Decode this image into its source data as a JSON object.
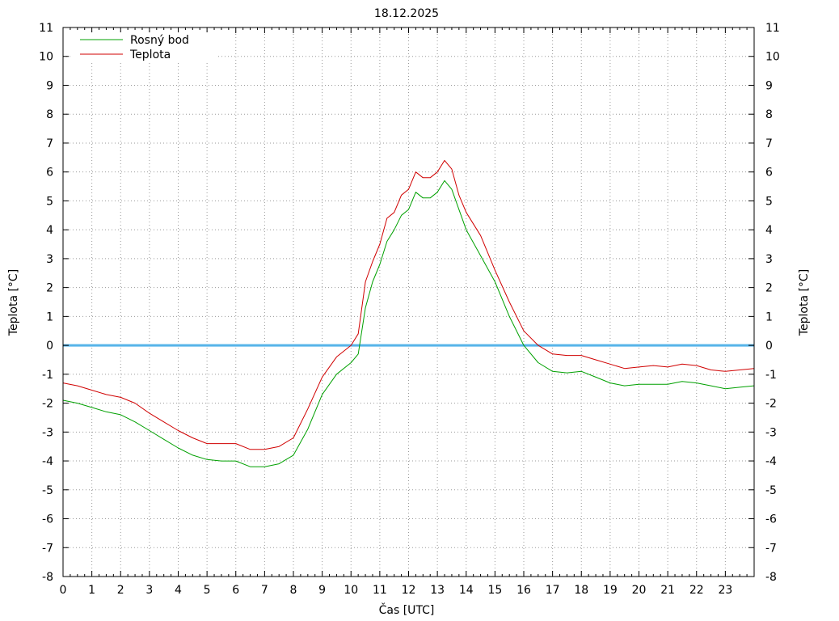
{
  "chart_data": {
    "type": "line",
    "title": "18.12.2025",
    "xlabel": "Čas [UTC]",
    "ylabel": "Teplota [°C]",
    "ylabel_right": "Teplota [°C]",
    "xlim": [
      0,
      24
    ],
    "ylim": [
      -8,
      11
    ],
    "x_ticks": [
      0,
      1,
      2,
      3,
      4,
      5,
      6,
      7,
      8,
      9,
      10,
      11,
      12,
      13,
      14,
      15,
      16,
      17,
      18,
      19,
      20,
      21,
      22,
      23
    ],
    "y_ticks": [
      -8,
      -7,
      -6,
      -5,
      -4,
      -3,
      -2,
      -1,
      0,
      1,
      2,
      3,
      4,
      5,
      6,
      7,
      8,
      9,
      10,
      11
    ],
    "grid": true,
    "legend_position": "top-left",
    "reference_line": {
      "y": 0,
      "color": "#56b4e9"
    },
    "series": [
      {
        "name": "Rosný bod",
        "color": "#00a000",
        "x": [
          0,
          0.5,
          1,
          1.5,
          2,
          2.5,
          3,
          3.5,
          4,
          4.5,
          5,
          5.5,
          6,
          6.5,
          7,
          7.5,
          8,
          8.5,
          9,
          9.5,
          10,
          10.25,
          10.5,
          10.75,
          11,
          11.25,
          11.5,
          11.75,
          12,
          12.25,
          12.5,
          12.75,
          13,
          13.25,
          13.5,
          13.75,
          14,
          14.5,
          15,
          15.5,
          16,
          16.5,
          17,
          17.5,
          18,
          18.5,
          19,
          19.5,
          20,
          20.5,
          21,
          21.5,
          22,
          22.5,
          23,
          23.5,
          24
        ],
        "y": [
          -1.9,
          -2.0,
          -2.15,
          -2.3,
          -2.4,
          -2.65,
          -2.95,
          -3.25,
          -3.55,
          -3.8,
          -3.95,
          -4.0,
          -4.0,
          -4.2,
          -4.2,
          -4.1,
          -3.8,
          -2.9,
          -1.7,
          -1.0,
          -0.6,
          -0.3,
          1.3,
          2.2,
          2.8,
          3.6,
          4.0,
          4.5,
          4.7,
          5.3,
          5.1,
          5.1,
          5.3,
          5.7,
          5.4,
          4.7,
          4.0,
          3.1,
          2.2,
          1.0,
          0.0,
          -0.6,
          -0.9,
          -0.95,
          -0.9,
          -1.1,
          -1.3,
          -1.4,
          -1.35,
          -1.35,
          -1.35,
          -1.25,
          -1.3,
          -1.4,
          -1.5,
          -1.45,
          -1.4
        ]
      },
      {
        "name": "Teplota",
        "color": "#d00000",
        "x": [
          0,
          0.5,
          1,
          1.5,
          2,
          2.5,
          3,
          3.5,
          4,
          4.5,
          5,
          5.5,
          6,
          6.5,
          7,
          7.5,
          8,
          8.5,
          9,
          9.5,
          10,
          10.25,
          10.5,
          10.75,
          11,
          11.25,
          11.5,
          11.75,
          12,
          12.25,
          12.5,
          12.75,
          13,
          13.25,
          13.5,
          13.75,
          14,
          14.5,
          15,
          15.5,
          16,
          16.5,
          17,
          17.5,
          18,
          18.5,
          19,
          19.5,
          20,
          20.5,
          21,
          21.5,
          22,
          22.5,
          23,
          23.5,
          24
        ],
        "y": [
          -1.3,
          -1.4,
          -1.55,
          -1.7,
          -1.8,
          -2.0,
          -2.35,
          -2.65,
          -2.95,
          -3.2,
          -3.4,
          -3.4,
          -3.4,
          -3.6,
          -3.6,
          -3.5,
          -3.2,
          -2.2,
          -1.1,
          -0.4,
          0.0,
          0.4,
          2.2,
          2.9,
          3.5,
          4.4,
          4.6,
          5.2,
          5.4,
          6.0,
          5.8,
          5.8,
          6.0,
          6.4,
          6.1,
          5.2,
          4.6,
          3.8,
          2.6,
          1.5,
          0.5,
          0.0,
          -0.3,
          -0.35,
          -0.35,
          -0.5,
          -0.65,
          -0.8,
          -0.75,
          -0.7,
          -0.75,
          -0.65,
          -0.7,
          -0.85,
          -0.9,
          -0.85,
          -0.8
        ]
      }
    ]
  }
}
